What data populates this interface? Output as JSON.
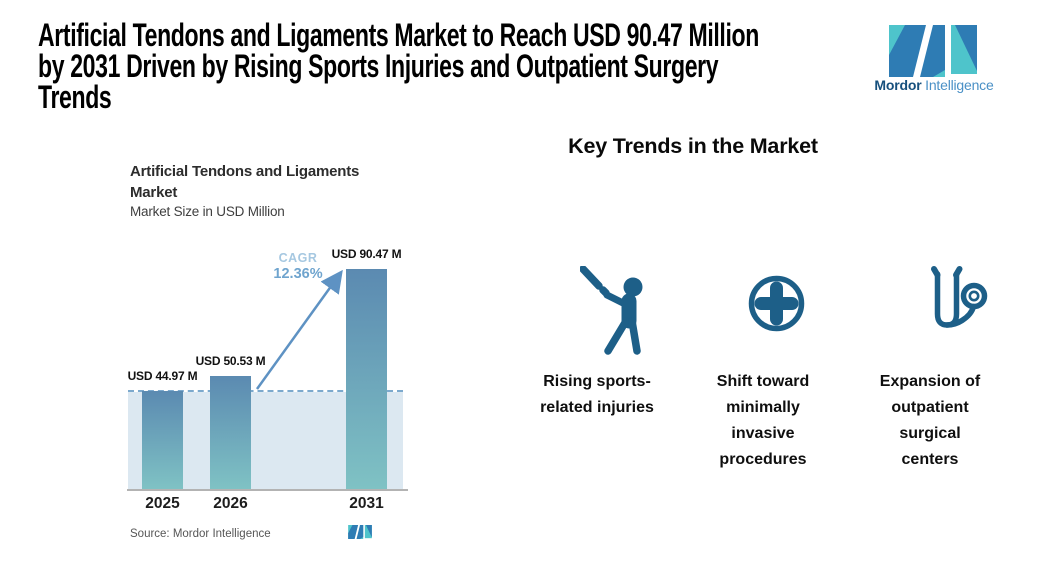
{
  "page": {
    "title_lines": [
      "Artificial Tendons and Ligaments Market to Reach USD 90.47 Million",
      "by 2031 Driven by Rising Sports Injuries and Outpatient Surgery",
      "Trends"
    ],
    "brand": {
      "name_bold": "Mordor",
      "name_light": "Intelligence"
    }
  },
  "chart_data": {
    "type": "bar",
    "title": "Artificial Tendons and Ligaments Market",
    "title_lines": [
      "Artificial Tendons and Ligaments",
      "Market"
    ],
    "subtitle": "Market Size in USD Million",
    "unit": "USD Million",
    "categories": [
      "2025",
      "2026",
      "2031"
    ],
    "values": [
      44.97,
      50.53,
      90.47
    ],
    "value_labels": [
      "USD 44.97 M",
      "USD 50.53 M",
      "USD 90.47 M"
    ],
    "cagr_label": "CAGR",
    "cagr_value": "12.36%",
    "annotations": [
      "Dashed reference line at 2025 level",
      "Growth arrow from 2026 bar to 2031 bar"
    ],
    "source": "Source: Mordor Intelligence",
    "grid": false,
    "baseline_note": "bars drawn with non-zero visual baseline"
  },
  "trends": {
    "heading": "Key Trends in the Market",
    "items": [
      {
        "icon": "baseball-batter-icon",
        "lines": [
          "Rising sports-",
          "related injuries",
          "",
          ""
        ]
      },
      {
        "icon": "medical-cross-icon",
        "lines": [
          "Shift toward",
          "minimally",
          "invasive",
          "procedures"
        ]
      },
      {
        "icon": "stethoscope-icon",
        "lines": [
          "Expansion of",
          "outpatient",
          "surgical",
          "centers"
        ]
      }
    ]
  },
  "colors": {
    "bar_top": "#5b8ab1",
    "bar_bottom": "#7fc2c4",
    "band_fill": "#dce8f1",
    "dashed_line": "#7ca9cd",
    "arrow": "#5e92c3",
    "cagr_label": "#a6c8e1",
    "cagr_value": "#6fa4ce",
    "icon_blue": "#1d5f88",
    "logo_teal": "#4ec4cb",
    "logo_blue": "#2e7cb4",
    "brand_dark": "#17507d",
    "brand_light": "#4a90c6"
  }
}
